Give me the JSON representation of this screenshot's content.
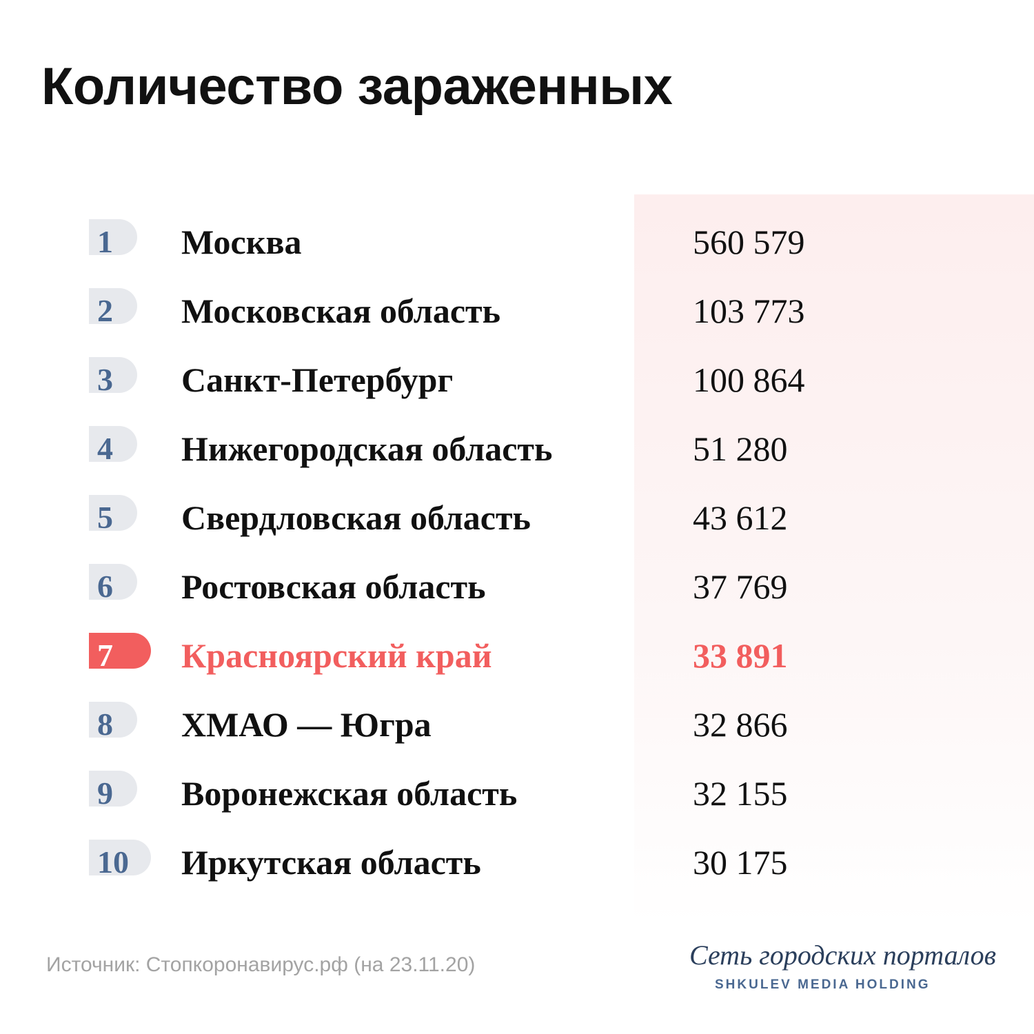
{
  "title": "Количество зараженных",
  "source": "Источник: Стопкоронавирус.рф (на 23.11.20)",
  "brand": {
    "name": "Сеть городских порталов",
    "subtitle": "SHKULEV MEDIA HOLDING"
  },
  "colors": {
    "accent": "#f25e5e",
    "rank_text": "#4a6891",
    "pill_bg": "#e7e9ed",
    "panel_bg": "#fdeeee",
    "text": "#111111",
    "muted": "#a3a3a3"
  },
  "chart_data": {
    "type": "table",
    "title": "Количество зараженных",
    "highlight_rank": 7,
    "rows": [
      {
        "rank": "1",
        "region": "Москва",
        "value_label": "560 579",
        "value": 560579
      },
      {
        "rank": "2",
        "region": "Московская область",
        "value_label": "103 773",
        "value": 103773
      },
      {
        "rank": "3",
        "region": "Санкт-Петербург",
        "value_label": "100 864",
        "value": 100864
      },
      {
        "rank": "4",
        "region": "Нижегородская область",
        "value_label": "51 280",
        "value": 51280
      },
      {
        "rank": "5",
        "region": "Свердловская область",
        "value_label": "43 612",
        "value": 43612
      },
      {
        "rank": "6",
        "region": "Ростовская область",
        "value_label": "37 769",
        "value": 37769
      },
      {
        "rank": "7",
        "region": "Красноярский край",
        "value_label": "33 891",
        "value": 33891
      },
      {
        "rank": "8",
        "region": "ХМАО — Югра",
        "value_label": "32 866",
        "value": 32866
      },
      {
        "rank": "9",
        "region": "Воронежская область",
        "value_label": "32 155",
        "value": 32155
      },
      {
        "rank": "10",
        "region": "Иркутская область",
        "value_label": "30 175",
        "value": 30175
      }
    ]
  }
}
